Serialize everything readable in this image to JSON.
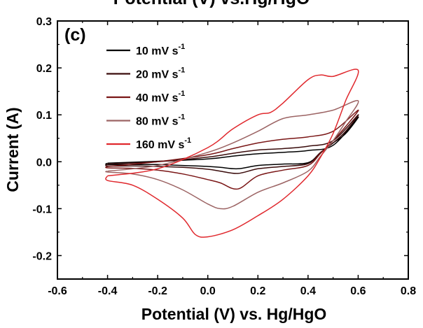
{
  "chart_data": {
    "type": "line",
    "title": "Potential (V) vs.Hg/HgO",
    "panel_label": "(c)",
    "xlabel": "Potential (V) vs. Hg/HgO",
    "ylabel": "Current (A)",
    "xlim": [
      -0.6,
      0.8
    ],
    "ylim": [
      -0.25,
      0.3
    ],
    "x_ticks": [
      "-0.6",
      "-0.4",
      "-0.2",
      "0.0",
      "0.2",
      "0.4",
      "0.6",
      "0.8"
    ],
    "y_ticks": [
      "0.3",
      "0.2",
      "0.1",
      "0.0",
      "-0.1",
      "-0.2"
    ],
    "grid": false,
    "legend_position": "top-left",
    "series": [
      {
        "name": "10 mV s-1",
        "label_main": "10 mV s",
        "label_sup": "-1",
        "color": "#000000",
        "x": [
          -0.4,
          -0.2,
          0.0,
          0.1,
          0.2,
          0.3,
          0.4,
          0.5,
          0.6,
          0.55,
          0.5,
          0.45,
          0.4,
          0.3,
          0.2,
          0.12,
          0.05,
          0.0,
          -0.1,
          -0.2,
          -0.3,
          -0.4
        ],
        "y": [
          -0.003,
          0.001,
          0.006,
          0.012,
          0.017,
          0.02,
          0.024,
          0.035,
          0.095,
          0.06,
          0.04,
          0.02,
          -0.002,
          -0.005,
          -0.008,
          -0.015,
          -0.012,
          -0.01,
          -0.008,
          -0.006,
          -0.006,
          -0.006
        ]
      },
      {
        "name": "20 mV s-1",
        "label_main": "20 mV s",
        "label_sup": "-1",
        "color": "#3a0c0c",
        "x": [
          -0.4,
          -0.2,
          0.0,
          0.1,
          0.2,
          0.3,
          0.4,
          0.5,
          0.6,
          0.55,
          0.5,
          0.45,
          0.4,
          0.3,
          0.2,
          0.12,
          0.05,
          0.0,
          -0.1,
          -0.2,
          -0.3,
          -0.4
        ],
        "y": [
          -0.005,
          0.0,
          0.01,
          0.018,
          0.025,
          0.028,
          0.033,
          0.045,
          0.1,
          0.065,
          0.04,
          0.02,
          -0.004,
          -0.01,
          -0.015,
          -0.025,
          -0.02,
          -0.016,
          -0.012,
          -0.01,
          -0.009,
          -0.009
        ]
      },
      {
        "name": "40 mV s-1",
        "label_main": "40 mV s",
        "label_sup": "-1",
        "color": "#7a1616",
        "x": [
          -0.4,
          -0.2,
          0.0,
          0.1,
          0.2,
          0.3,
          0.4,
          0.5,
          0.6,
          0.55,
          0.5,
          0.45,
          0.4,
          0.3,
          0.2,
          0.12,
          0.05,
          0.0,
          -0.1,
          -0.2,
          -0.3,
          -0.4
        ],
        "y": [
          -0.01,
          0.0,
          0.015,
          0.028,
          0.04,
          0.048,
          0.053,
          0.065,
          0.11,
          0.075,
          0.045,
          0.018,
          -0.008,
          -0.018,
          -0.03,
          -0.058,
          -0.045,
          -0.038,
          -0.026,
          -0.018,
          -0.014,
          -0.013
        ]
      },
      {
        "name": "80 mV s-1",
        "label_main": "80 mV s",
        "label_sup": "-1",
        "color": "#9c6464",
        "x": [
          -0.4,
          -0.2,
          0.0,
          0.1,
          0.2,
          0.3,
          0.4,
          0.5,
          0.6,
          0.55,
          0.5,
          0.45,
          0.4,
          0.3,
          0.2,
          0.1,
          0.05,
          0.0,
          -0.1,
          -0.2,
          -0.3,
          -0.4
        ],
        "y": [
          -0.02,
          -0.008,
          0.02,
          0.04,
          0.065,
          0.092,
          0.1,
          0.11,
          0.13,
          0.085,
          0.045,
          0.012,
          -0.02,
          -0.045,
          -0.065,
          -0.095,
          -0.1,
          -0.09,
          -0.06,
          -0.038,
          -0.026,
          -0.022
        ]
      },
      {
        "name": "160 mV s-1",
        "label_main": "160 mV s",
        "label_sup": "-1",
        "color": "#e0282d",
        "x": [
          -0.4,
          -0.2,
          0.0,
          0.1,
          0.2,
          0.25,
          0.3,
          0.4,
          0.45,
          0.5,
          0.6,
          0.55,
          0.5,
          0.45,
          0.4,
          0.3,
          0.2,
          0.1,
          0.0,
          -0.05,
          -0.1,
          -0.2,
          -0.3,
          -0.4
        ],
        "y": [
          -0.03,
          -0.015,
          0.03,
          0.07,
          0.1,
          0.105,
          0.125,
          0.175,
          0.185,
          0.182,
          0.195,
          0.13,
          0.06,
          0.01,
          -0.03,
          -0.08,
          -0.115,
          -0.145,
          -0.16,
          -0.155,
          -0.12,
          -0.08,
          -0.05,
          -0.04
        ]
      }
    ]
  }
}
